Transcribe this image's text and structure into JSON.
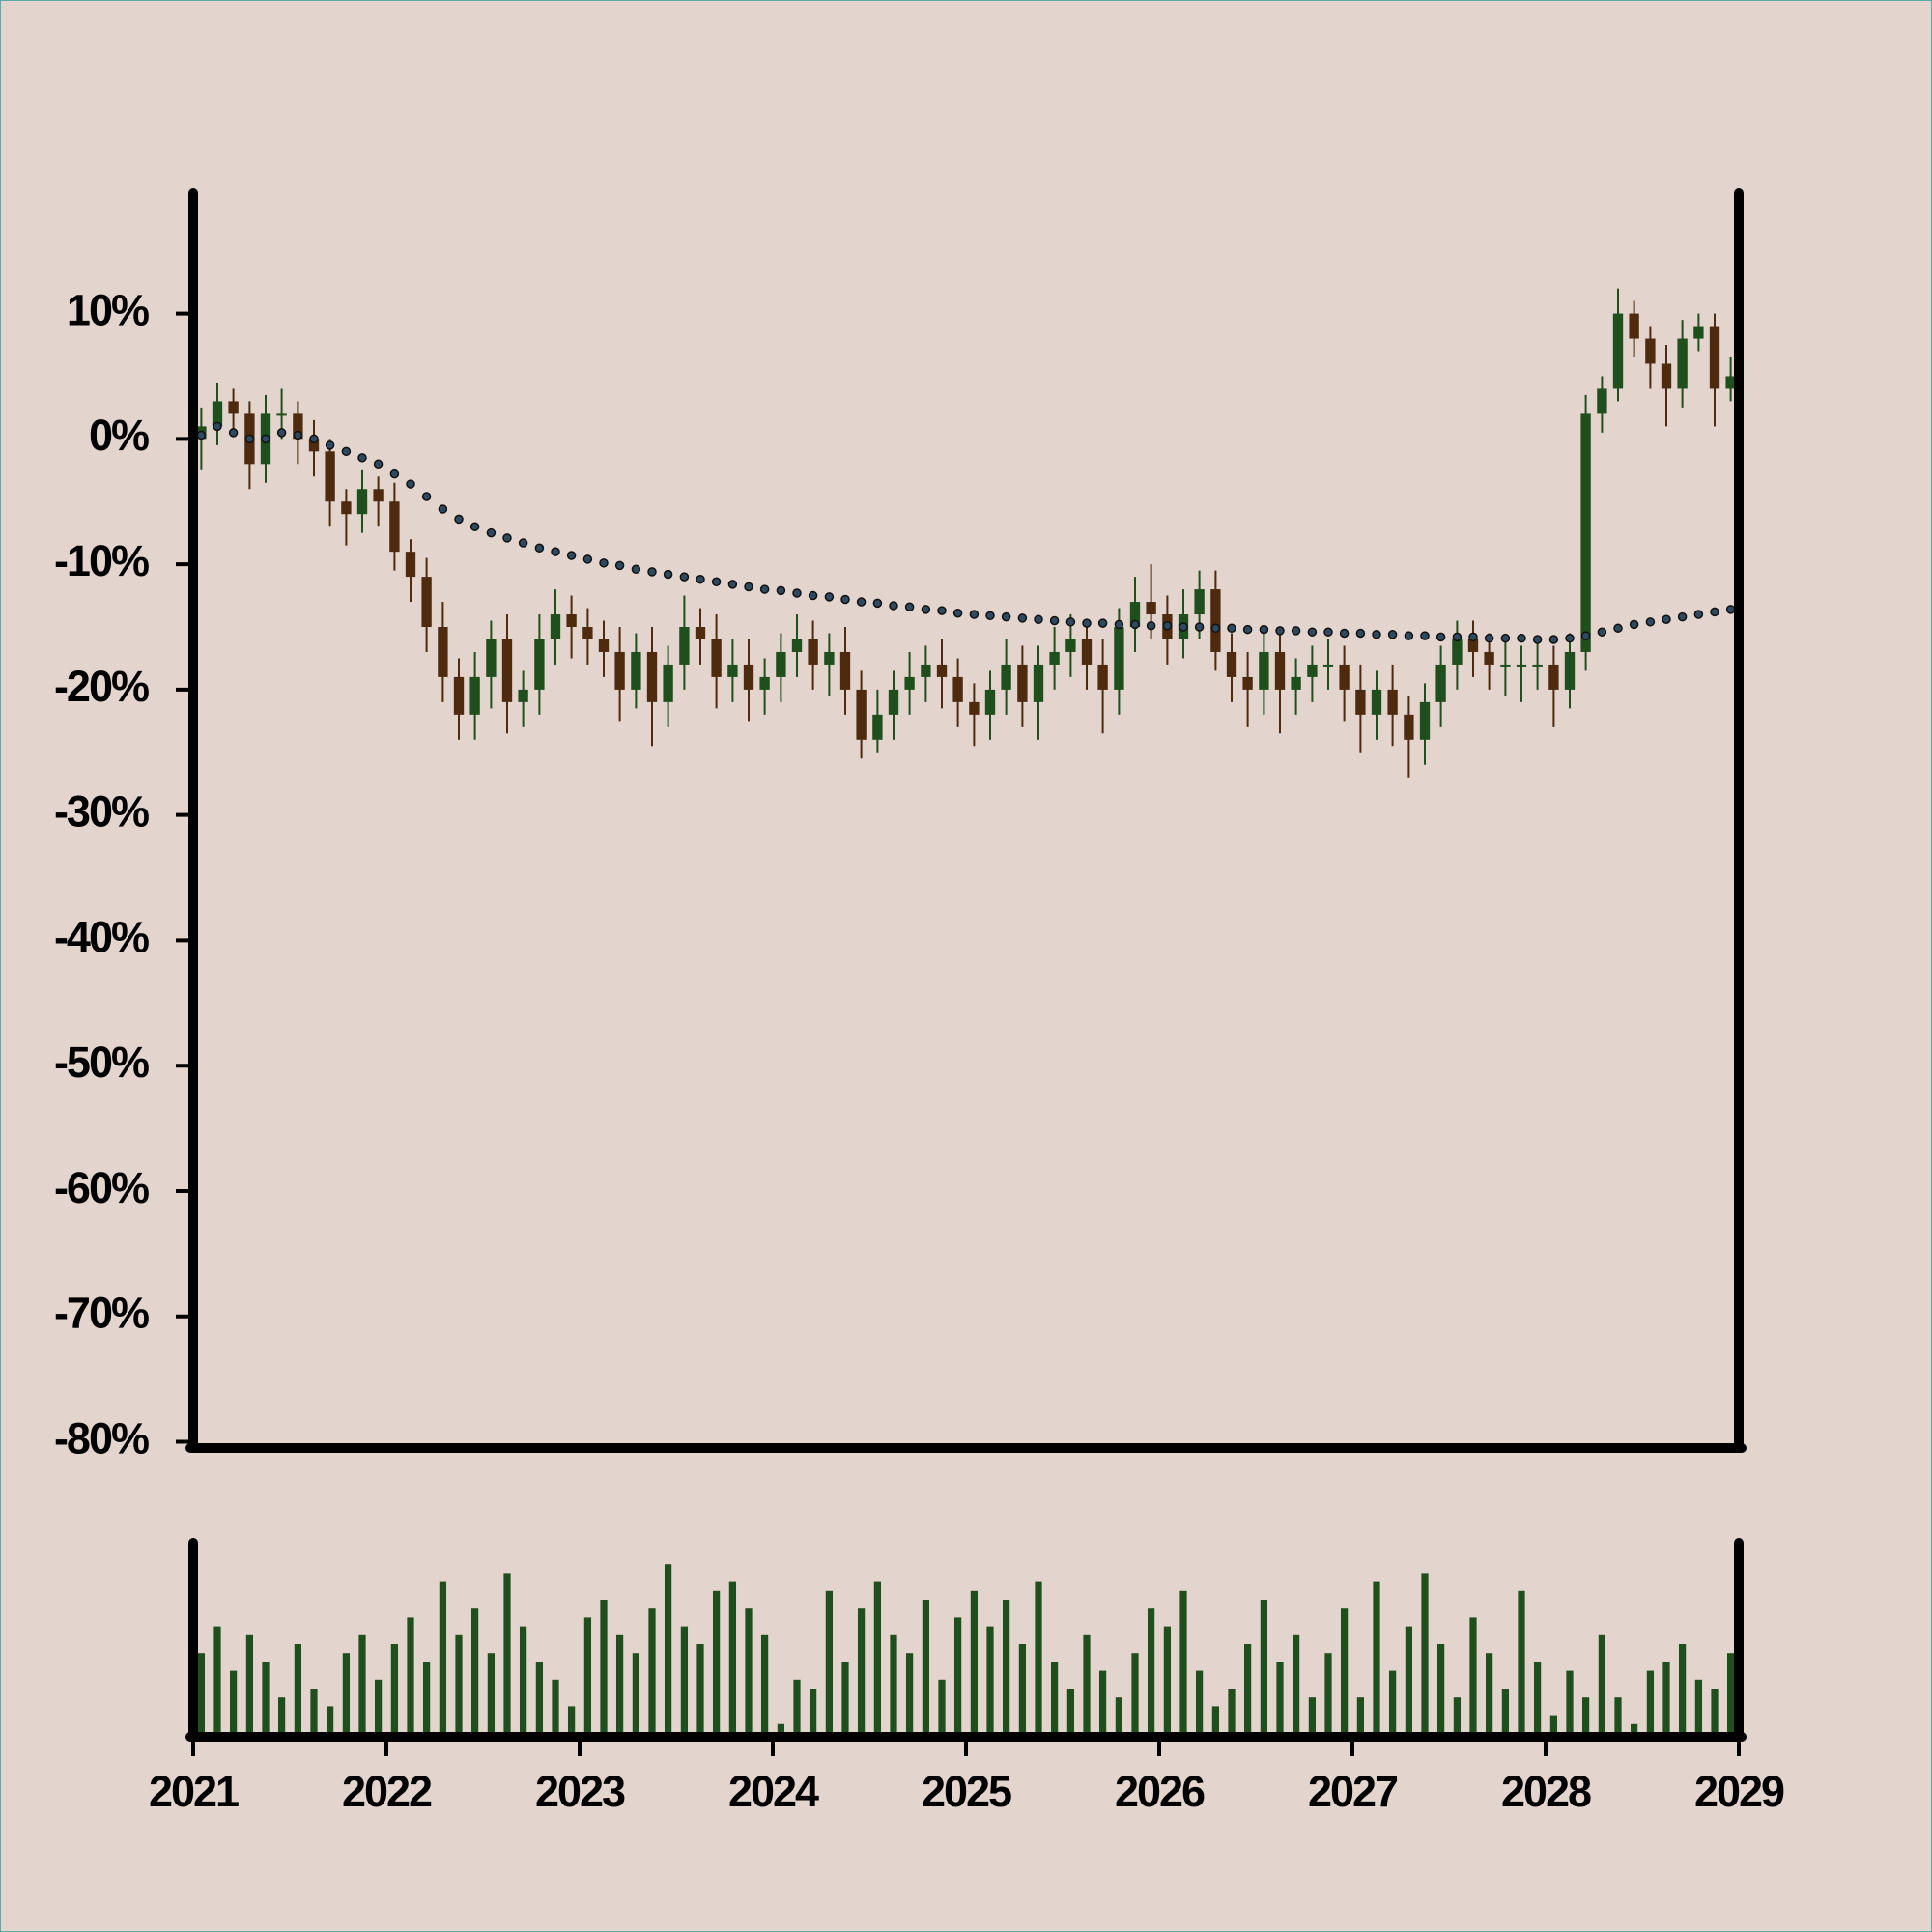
{
  "chart_data": {
    "type": "candlestick",
    "x": [
      2021.042,
      2021.125,
      2021.208,
      2021.292,
      2021.375,
      2021.458,
      2021.542,
      2021.625,
      2021.708,
      2021.792,
      2021.875,
      2021.958,
      2022.042,
      2022.125,
      2022.208,
      2022.292,
      2022.375,
      2022.458,
      2022.542,
      2022.625,
      2022.708,
      2022.792,
      2022.875,
      2022.958,
      2023.042,
      2023.125,
      2023.208,
      2023.292,
      2023.375,
      2023.458,
      2023.542,
      2023.625,
      2023.708,
      2023.792,
      2023.875,
      2023.958,
      2024.042,
      2024.125,
      2024.208,
      2024.292,
      2024.375,
      2024.458,
      2024.542,
      2024.625,
      2024.708,
      2024.792,
      2024.875,
      2024.958,
      2025.042,
      2025.125,
      2025.208,
      2025.292,
      2025.375,
      2025.458,
      2025.542,
      2025.625,
      2025.708,
      2025.792,
      2025.875,
      2025.958,
      2026.042,
      2026.125,
      2026.208,
      2026.292,
      2026.375,
      2026.458,
      2026.542,
      2026.625,
      2026.708,
      2026.792,
      2026.875,
      2026.958,
      2027.042,
      2027.125,
      2027.208,
      2027.292,
      2027.375,
      2027.458,
      2027.542,
      2027.625,
      2027.708,
      2027.792,
      2027.875,
      2027.958,
      2028.042,
      2028.125,
      2028.208,
      2028.292,
      2028.375,
      2028.458,
      2028.542,
      2028.625,
      2028.708,
      2028.792,
      2028.875,
      2028.958
    ],
    "open": [
      0,
      1,
      3,
      2,
      -2,
      2,
      2,
      0,
      -1,
      -5,
      -6,
      -4,
      -5,
      -9,
      -11,
      -15,
      -19,
      -22,
      -19,
      -16,
      -21,
      -20,
      -16,
      -14,
      -15,
      -16,
      -17,
      -20,
      -17,
      -21,
      -18,
      -15,
      -16,
      -19,
      -18,
      -20,
      -19,
      -17,
      -16,
      -18,
      -17,
      -20,
      -24,
      -22,
      -20,
      -19,
      -18,
      -19,
      -21,
      -22,
      -20,
      -18,
      -21,
      -18,
      -17,
      -16,
      -18,
      -20,
      -15,
      -13,
      -14,
      -16,
      -14,
      -12,
      -17,
      -19,
      -20,
      -17,
      -20,
      -19,
      -18,
      -18,
      -20,
      -22,
      -20,
      -22,
      -24,
      -21,
      -18,
      -16,
      -17,
      -18,
      -18,
      -18,
      -18,
      -20,
      -17,
      2,
      4,
      10,
      8,
      6,
      4,
      8,
      9,
      4
    ],
    "high": [
      2.5,
      4.5,
      4,
      3,
      3.5,
      4,
      3,
      1.5,
      0,
      -4,
      -2.5,
      -3,
      -3.5,
      -8,
      -9.5,
      -13,
      -17.5,
      -17,
      -14.5,
      -14,
      -18.5,
      -14,
      -12,
      -12.5,
      -13.5,
      -14.5,
      -15,
      -15.5,
      -15,
      -16.5,
      -12.5,
      -13.5,
      -14,
      -16,
      -16,
      -17.5,
      -15.5,
      -14,
      -14.5,
      -15.5,
      -15,
      -18.5,
      -20,
      -18.5,
      -17,
      -16.5,
      -16,
      -17.5,
      -19.5,
      -18.5,
      -16,
      -16.5,
      -16.5,
      -15,
      -14,
      -14.5,
      -16,
      -13.5,
      -11,
      -10,
      -12.5,
      -12,
      -10.5,
      -10.5,
      -15.5,
      -17,
      -15.5,
      -15,
      -17.5,
      -16.5,
      -16,
      -16.5,
      -18,
      -18.5,
      -18,
      -20.5,
      -19.5,
      -16.5,
      -14.5,
      -14.5,
      -15.5,
      -16,
      -16.5,
      -16,
      -16.5,
      -15.5,
      3.5,
      5,
      12,
      11,
      9,
      7.5,
      9.5,
      10,
      10,
      6.5
    ],
    "low": [
      -2.5,
      -0.5,
      0.5,
      -4,
      -3.5,
      0,
      -2,
      -3,
      -7,
      -8.5,
      -7.5,
      -7,
      -10.5,
      -13,
      -17,
      -21,
      -24,
      -24,
      -21.5,
      -23.5,
      -23,
      -22,
      -18,
      -17.5,
      -18,
      -19,
      -22.5,
      -21.5,
      -24.5,
      -23,
      -20,
      -18,
      -21.5,
      -21,
      -22.5,
      -22,
      -21,
      -19,
      -20,
      -20.5,
      -22,
      -25.5,
      -25,
      -24,
      -22,
      -21,
      -21.5,
      -23,
      -24.5,
      -24,
      -22,
      -23,
      -24,
      -20,
      -19,
      -20,
      -23.5,
      -22,
      -17,
      -16,
      -18,
      -17.5,
      -16,
      -18.5,
      -21,
      -23,
      -22,
      -23.5,
      -22,
      -21,
      -20,
      -22.5,
      -25,
      -24,
      -24.5,
      -27,
      -26,
      -23,
      -20,
      -19,
      -20,
      -20.5,
      -21,
      -20,
      -23,
      -21.5,
      -18.5,
      0.5,
      3,
      6.5,
      4,
      1,
      2.5,
      7,
      1,
      3
    ],
    "close": [
      1,
      3,
      2,
      -2,
      2,
      2,
      0,
      -1,
      -5,
      -6,
      -4,
      -5,
      -9,
      -11,
      -15,
      -19,
      -22,
      -19,
      -16,
      -21,
      -20,
      -16,
      -14,
      -15,
      -16,
      -17,
      -20,
      -17,
      -21,
      -18,
      -15,
      -16,
      -19,
      -18,
      -20,
      -19,
      -17,
      -16,
      -18,
      -17,
      -20,
      -24,
      -22,
      -20,
      -19,
      -18,
      -19,
      -21,
      -22,
      -20,
      -18,
      -21,
      -18,
      -17,
      -16,
      -18,
      -20,
      -15,
      -13,
      -14,
      -16,
      -14,
      -12,
      -17,
      -19,
      -20,
      -17,
      -20,
      -19,
      -18,
      -18,
      -20,
      -22,
      -20,
      -22,
      -24,
      -21,
      -18,
      -16,
      -17,
      -18,
      -18,
      -18,
      -18,
      -20,
      -17,
      2,
      4,
      10,
      8,
      6,
      4,
      8,
      9,
      4,
      5
    ],
    "ma": [
      0.3,
      1,
      0.5,
      0,
      0,
      0.5,
      0.3,
      0,
      -0.5,
      -1,
      -1.5,
      -2,
      -2.8,
      -3.6,
      -4.6,
      -5.6,
      -6.4,
      -7,
      -7.5,
      -7.9,
      -8.3,
      -8.7,
      -9,
      -9.3,
      -9.6,
      -9.9,
      -10.1,
      -10.4,
      -10.6,
      -10.8,
      -11,
      -11.2,
      -11.4,
      -11.6,
      -11.8,
      -12,
      -12.1,
      -12.3,
      -12.5,
      -12.6,
      -12.8,
      -13,
      -13.1,
      -13.3,
      -13.4,
      -13.6,
      -13.7,
      -13.9,
      -14,
      -14.1,
      -14.2,
      -14.3,
      -14.4,
      -14.5,
      -14.6,
      -14.7,
      -14.7,
      -14.8,
      -14.8,
      -14.9,
      -14.9,
      -15,
      -15,
      -15.1,
      -15.1,
      -15.2,
      -15.2,
      -15.3,
      -15.3,
      -15.4,
      -15.4,
      -15.5,
      -15.5,
      -15.6,
      -15.6,
      -15.7,
      -15.7,
      -15.8,
      -15.8,
      -15.8,
      -15.9,
      -15.9,
      -15.9,
      -16,
      -16,
      -15.9,
      -15.7,
      -15.4,
      -15.1,
      -14.8,
      -14.6,
      -14.4,
      -14.2,
      -14,
      -13.8,
      -13.6
    ],
    "volume": [
      45,
      60,
      35,
      55,
      40,
      20,
      50,
      25,
      15,
      45,
      55,
      30,
      50,
      65,
      40,
      85,
      55,
      70,
      45,
      90,
      60,
      40,
      30,
      15,
      65,
      75,
      55,
      45,
      70,
      95,
      60,
      50,
      80,
      85,
      70,
      55,
      5,
      30,
      25,
      80,
      40,
      70,
      85,
      55,
      45,
      75,
      30,
      65,
      80,
      60,
      75,
      50,
      85,
      40,
      25,
      55,
      35,
      20,
      45,
      70,
      60,
      80,
      35,
      15,
      25,
      50,
      75,
      40,
      55,
      20,
      45,
      70,
      20,
      85,
      35,
      60,
      90,
      50,
      20,
      65,
      45,
      25,
      80,
      40,
      10,
      35,
      20,
      55,
      20,
      5,
      35,
      40,
      50,
      30,
      25,
      45
    ],
    "xlim": [
      2021,
      2029
    ],
    "xticks": [
      2021,
      2022,
      2023,
      2024,
      2025,
      2026,
      2027,
      2028,
      2029
    ],
    "ylim": [
      -80.5,
      19.6
    ],
    "yticks": [
      {
        "value": 10,
        "label": "10%"
      },
      {
        "value": 0,
        "label": "0%"
      },
      {
        "value": -10,
        "label": "-10%"
      },
      {
        "value": -20,
        "label": "-20%"
      },
      {
        "value": -30,
        "label": "-30%"
      },
      {
        "value": -40,
        "label": "-40%"
      },
      {
        "value": -50,
        "label": "-50%"
      },
      {
        "value": -60,
        "label": "-60%"
      },
      {
        "value": -70,
        "label": "-70%"
      },
      {
        "value": -80,
        "label": "-80%"
      }
    ],
    "volume_ylim": [
      0,
      100
    ],
    "up_color": "#1f4f1c",
    "down_color": "#4e2a0e",
    "volume_color": "#1f4f1c",
    "ma_color": "#2e4a60"
  }
}
